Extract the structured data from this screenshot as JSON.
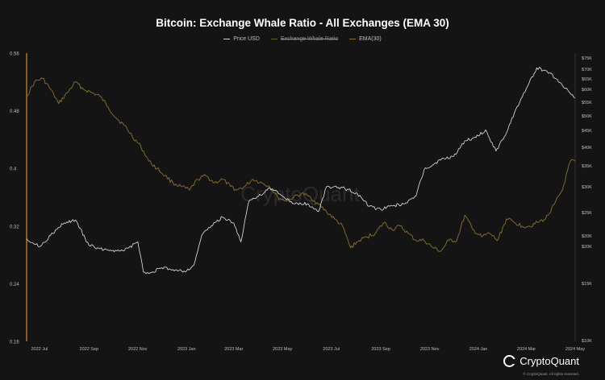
{
  "title": "Bitcoin: Exchange Whale Ratio - All Exchanges (EMA 30)",
  "legend": [
    {
      "label": "Price USD",
      "color": "#d9d9d9",
      "struck": false
    },
    {
      "label": "Exchange Whale Ratio",
      "color": "#6b5a2a",
      "struck": true
    },
    {
      "label": "EMA(30)",
      "color": "#8c7030",
      "struck": false
    }
  ],
  "watermark": "CryptoQuant",
  "footer": {
    "logo_text": "CryptoQuant",
    "copyright": "© CryptoQuant. All rights reserved."
  },
  "colors": {
    "background": "#141414",
    "price_line": "#e6e6e6",
    "ema_line": "#8c7030",
    "highlight_axis": "#d18a2a",
    "grid": "#2a2a2a"
  },
  "chart_data": {
    "type": "line",
    "x_ticks": [
      "2022 Jul",
      "2022 Sep",
      "2022 Nov",
      "2023 Jan",
      "2023 Mar",
      "2023 May",
      "2023 Jul",
      "2023 Sep",
      "2023 Nov",
      "2024 Jan",
      "2024 Mar",
      "2024 May"
    ],
    "x_range": [
      "2022-06-15",
      "2024-05-01"
    ],
    "left_axis": {
      "label": "",
      "ticks": [
        "0.56",
        "0.48",
        "0.4",
        "0.32",
        "0.24",
        "0.16"
      ],
      "ylim": [
        0.16,
        0.56
      ]
    },
    "right_axis": {
      "label": "",
      "scale": "log",
      "ticks": [
        "$75K",
        "$70K",
        "$65K",
        "$60K",
        "$55K",
        "$50K",
        "$45K",
        "$40K",
        "$35K",
        "$30K",
        "$25K",
        "$20K",
        "$20K",
        "$15K",
        "$10K"
      ],
      "ylim": [
        10000,
        80000
      ]
    },
    "series": [
      {
        "name": "Price USD",
        "axis": "right",
        "x": [
          "2022-06-15",
          "2022-07-01",
          "2022-07-15",
          "2022-08-01",
          "2022-08-15",
          "2022-09-01",
          "2022-09-15",
          "2022-10-01",
          "2022-10-15",
          "2022-11-01",
          "2022-11-08",
          "2022-11-15",
          "2022-12-01",
          "2022-12-15",
          "2023-01-01",
          "2023-01-10",
          "2023-01-20",
          "2023-02-01",
          "2023-02-15",
          "2023-03-01",
          "2023-03-10",
          "2023-03-20",
          "2023-04-01",
          "2023-04-15",
          "2023-05-01",
          "2023-05-15",
          "2023-06-01",
          "2023-06-15",
          "2023-06-25",
          "2023-07-15",
          "2023-08-01",
          "2023-08-17",
          "2023-09-01",
          "2023-09-15",
          "2023-10-01",
          "2023-10-15",
          "2023-10-25",
          "2023-11-15",
          "2023-12-01",
          "2023-12-15",
          "2024-01-01",
          "2024-01-10",
          "2024-01-23",
          "2024-02-01",
          "2024-02-15",
          "2024-03-01",
          "2024-03-14",
          "2024-04-01",
          "2024-04-15",
          "2024-05-01"
        ],
        "values": [
          21000,
          19800,
          21500,
          23500,
          24000,
          20000,
          19500,
          19300,
          19200,
          20500,
          16500,
          16300,
          17000,
          16800,
          16600,
          17300,
          21500,
          23000,
          24500,
          23500,
          20500,
          27500,
          28500,
          30300,
          28500,
          27000,
          27000,
          25500,
          30500,
          30300,
          29200,
          26500,
          25900,
          26600,
          27000,
          28500,
          34500,
          37000,
          38000,
          42500,
          44000,
          46000,
          39500,
          43000,
          52000,
          62000,
          72000,
          69000,
          63500,
          58000
        ]
      },
      {
        "name": "EMA(30)",
        "axis": "left",
        "x": [
          "2022-06-15",
          "2022-06-25",
          "2022-07-05",
          "2022-07-15",
          "2022-07-25",
          "2022-08-05",
          "2022-08-15",
          "2022-08-25",
          "2022-09-05",
          "2022-09-15",
          "2022-09-25",
          "2022-10-05",
          "2022-10-15",
          "2022-10-25",
          "2022-11-05",
          "2022-11-15",
          "2022-11-25",
          "2022-12-05",
          "2022-12-15",
          "2022-12-25",
          "2023-01-05",
          "2023-01-15",
          "2023-01-25",
          "2023-02-05",
          "2023-02-15",
          "2023-02-25",
          "2023-03-05",
          "2023-03-15",
          "2023-03-25",
          "2023-04-05",
          "2023-04-15",
          "2023-04-25",
          "2023-05-05",
          "2023-05-15",
          "2023-05-25",
          "2023-06-05",
          "2023-06-15",
          "2023-06-25",
          "2023-07-05",
          "2023-07-15",
          "2023-07-25",
          "2023-08-05",
          "2023-08-15",
          "2023-08-25",
          "2023-09-05",
          "2023-09-15",
          "2023-09-25",
          "2023-10-05",
          "2023-10-15",
          "2023-10-25",
          "2023-11-05",
          "2023-11-15",
          "2023-11-25",
          "2023-12-05",
          "2023-12-15",
          "2023-12-25",
          "2024-01-05",
          "2024-01-15",
          "2024-01-25",
          "2024-02-05",
          "2024-02-15",
          "2024-02-25",
          "2024-03-05",
          "2024-03-15",
          "2024-03-25",
          "2024-04-05",
          "2024-04-15",
          "2024-04-25",
          "2024-05-01"
        ],
        "values": [
          0.5,
          0.52,
          0.525,
          0.51,
          0.49,
          0.505,
          0.52,
          0.51,
          0.505,
          0.5,
          0.485,
          0.47,
          0.46,
          0.445,
          0.43,
          0.41,
          0.4,
          0.39,
          0.38,
          0.375,
          0.37,
          0.385,
          0.39,
          0.38,
          0.385,
          0.375,
          0.37,
          0.375,
          0.385,
          0.38,
          0.375,
          0.36,
          0.355,
          0.36,
          0.365,
          0.36,
          0.35,
          0.34,
          0.33,
          0.32,
          0.29,
          0.3,
          0.305,
          0.31,
          0.325,
          0.315,
          0.32,
          0.31,
          0.3,
          0.3,
          0.29,
          0.285,
          0.3,
          0.3,
          0.335,
          0.315,
          0.305,
          0.31,
          0.3,
          0.33,
          0.325,
          0.32,
          0.32,
          0.325,
          0.33,
          0.35,
          0.37,
          0.41,
          0.41
        ]
      }
    ],
    "grid": false,
    "legend_position": "top-center"
  }
}
